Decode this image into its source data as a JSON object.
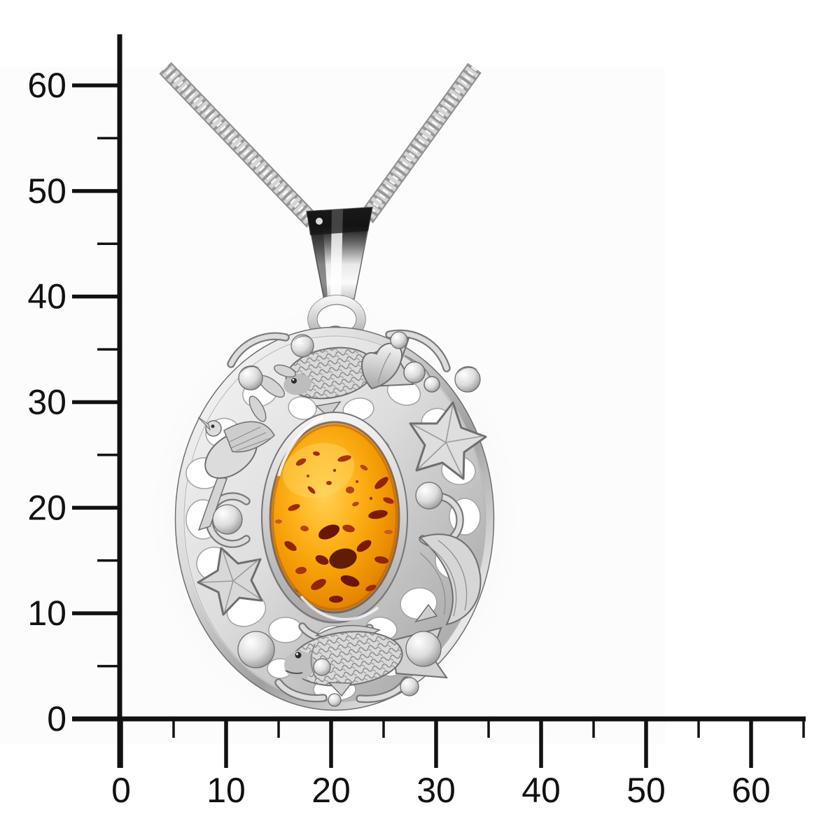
{
  "scale": {
    "axis_color": "#111111",
    "x_axis": {
      "labels": [
        "0",
        "10",
        "20",
        "30",
        "40",
        "50",
        "60"
      ],
      "major_tick_values": [
        0,
        10,
        20,
        30,
        40,
        50,
        60
      ],
      "minor_tick_values": [
        5,
        15,
        25,
        35,
        45,
        55,
        65
      ]
    },
    "y_axis": {
      "labels": [
        "0",
        "10",
        "20",
        "30",
        "40",
        "50",
        "60"
      ],
      "major_tick_values": [
        0,
        10,
        20,
        30,
        40,
        50,
        60
      ],
      "minor_tick_values": [
        5,
        15,
        25,
        35,
        45,
        55
      ]
    }
  },
  "photo": {
    "subject_motifs": [
      "fish",
      "bird",
      "starfish",
      "heart-leaf",
      "berries",
      "bubble-beads",
      "amber-cabochon",
      "snake-chain",
      "bail"
    ],
    "colors": {
      "amber_core": "#f59e06",
      "amber_highlight": "#ffd054",
      "amber_deep": "#c76400",
      "inclusion_dark": "#5f1404",
      "inclusion_red": "#9c2c08",
      "silver_light": "#f4f4f4",
      "silver_mid": "#c9c9c9",
      "silver_dark": "#6e6e6e",
      "photo_background": "#fcfcfc",
      "page_background": "#ffffff"
    }
  }
}
